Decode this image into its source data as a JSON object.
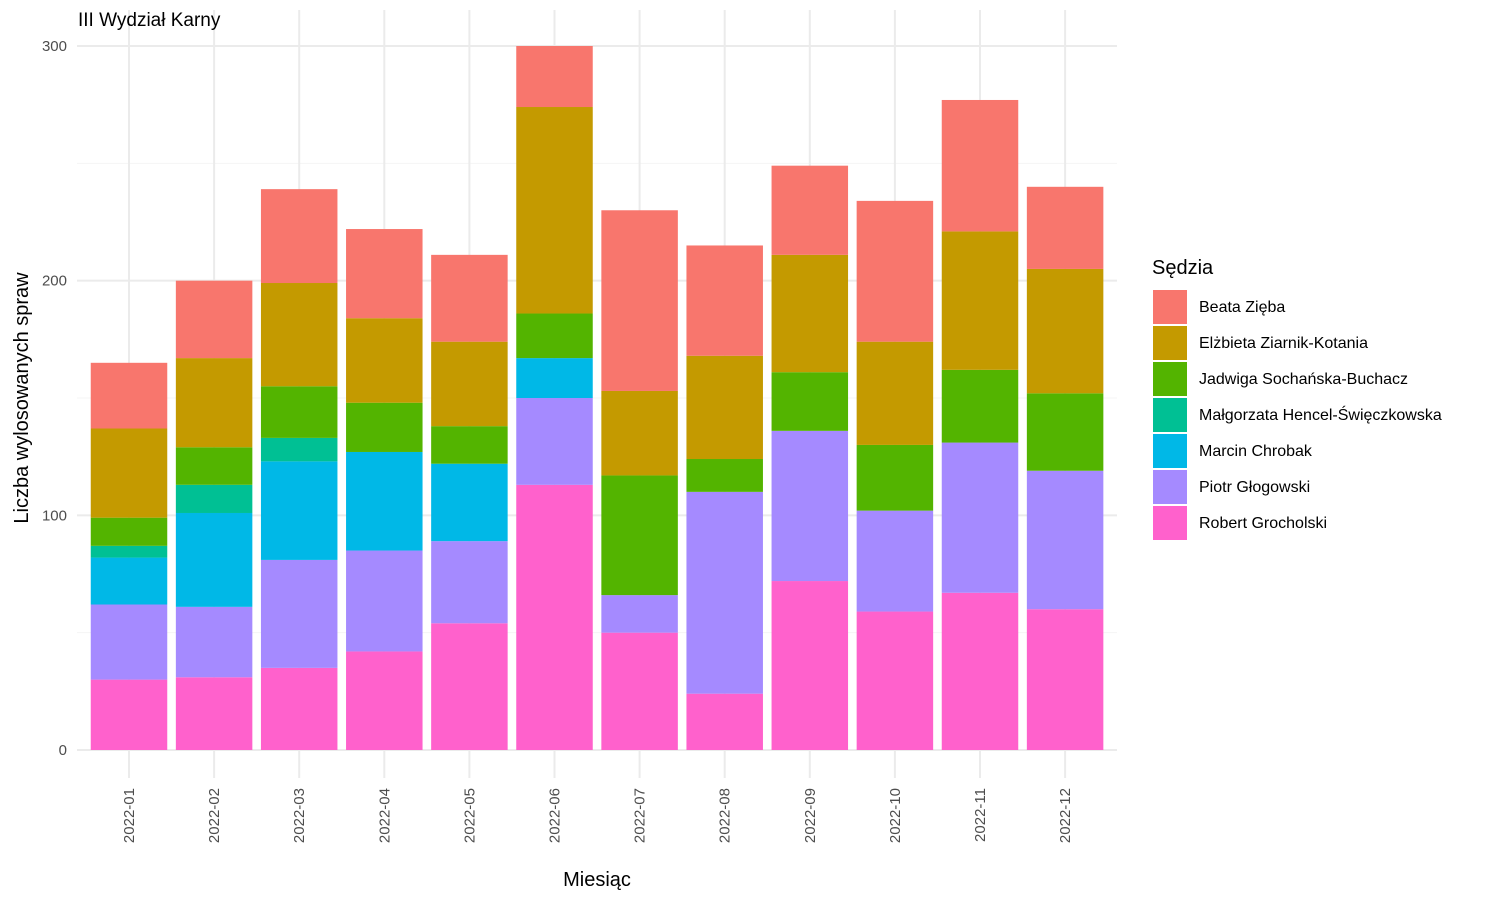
{
  "chart_data": {
    "type": "bar",
    "stacked": true,
    "title": "III Wydział Karny",
    "xlabel": "Miesiąc",
    "ylabel": "Liczba wylosowanych spraw",
    "ylim": [
      -12,
      300
    ],
    "yticks": [
      0,
      100,
      200,
      300
    ],
    "grid": true,
    "legend_title": "Sędzia",
    "legend_position": "right",
    "categories": [
      "2022-01",
      "2022-02",
      "2022-03",
      "2022-04",
      "2022-05",
      "2022-06",
      "2022-07",
      "2022-08",
      "2022-09",
      "2022-10",
      "2022-11",
      "2022-12"
    ],
    "series": [
      {
        "name": "Robert Grocholski",
        "color": "#FF61CC",
        "values": [
          30,
          31,
          35,
          42,
          54,
          113,
          50,
          24,
          72,
          59,
          67,
          60
        ]
      },
      {
        "name": "Piotr Głogowski",
        "color": "#A58AFF",
        "values": [
          32,
          30,
          46,
          43,
          35,
          37,
          16,
          86,
          64,
          43,
          64,
          59
        ]
      },
      {
        "name": "Marcin Chrobak",
        "color": "#00B8E7",
        "values": [
          20,
          40,
          42,
          42,
          33,
          17,
          0,
          0,
          0,
          0,
          0,
          0
        ]
      },
      {
        "name": "Małgorzata Hencel-Święczkowska",
        "color": "#00C094",
        "values": [
          5,
          12,
          10,
          0,
          0,
          0,
          0,
          0,
          0,
          0,
          0,
          0
        ]
      },
      {
        "name": "Jadwiga Sochańska-Buchacz",
        "color": "#53B400",
        "values": [
          12,
          16,
          22,
          21,
          16,
          19,
          51,
          14,
          25,
          28,
          31,
          33
        ]
      },
      {
        "name": "Elżbieta Ziarnik-Kotania",
        "color": "#C49A00",
        "values": [
          38,
          38,
          44,
          36,
          36,
          88,
          36,
          44,
          50,
          44,
          59,
          53
        ]
      },
      {
        "name": "Beata Zięba",
        "color": "#F8766D",
        "values": [
          28,
          33,
          40,
          38,
          37,
          26,
          77,
          47,
          38,
          60,
          56,
          35
        ]
      }
    ],
    "legend_order": [
      "Beata Zięba",
      "Elżbieta Ziarnik-Kotania",
      "Jadwiga Sochańska-Buchacz",
      "Małgorzata Hencel-Święczkowska",
      "Marcin Chrobak",
      "Piotr Głogowski",
      "Robert Grocholski"
    ]
  }
}
